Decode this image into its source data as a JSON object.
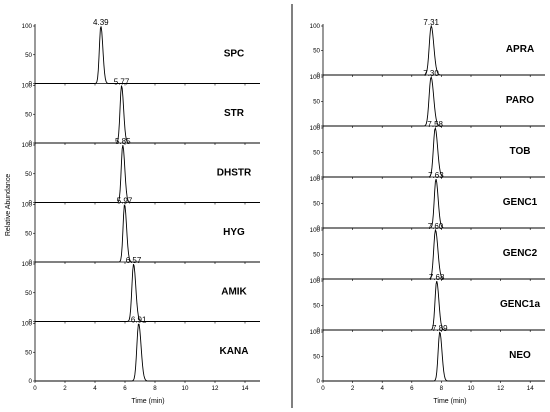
{
  "chart_data": [
    {
      "type": "line",
      "panel": "left",
      "xlabel": "Time (min)",
      "ylabel": "Relative Abundance",
      "xlim": [
        0,
        15
      ],
      "ylim": [
        0,
        100
      ],
      "x_ticks": [
        "0",
        "2",
        "4",
        "6",
        "8",
        "10",
        "12",
        "14"
      ],
      "y_ticks": [
        "0",
        "50",
        "100"
      ],
      "series": [
        {
          "name": "SPC",
          "peak_time": 4.39,
          "peak_label": "4.39",
          "peak_width": 0.1
        },
        {
          "name": "STR",
          "peak_time": 5.77,
          "peak_label": "5.77",
          "peak_width": 0.1
        },
        {
          "name": "DHSTR",
          "peak_time": 5.85,
          "peak_label": "5.85",
          "peak_width": 0.1
        },
        {
          "name": "HYG",
          "peak_time": 5.97,
          "peak_label": "5.97",
          "peak_width": 0.1
        },
        {
          "name": "AMIK",
          "peak_time": 6.57,
          "peak_label": "6.57",
          "peak_width": 0.11
        },
        {
          "name": "KANA",
          "peak_time": 6.91,
          "peak_label": "6.91",
          "peak_width": 0.12
        }
      ]
    },
    {
      "type": "line",
      "panel": "right",
      "xlabel": "Time (min)",
      "ylabel": "",
      "xlim": [
        0,
        15
      ],
      "ylim": [
        0,
        100
      ],
      "x_ticks": [
        "0",
        "2",
        "4",
        "6",
        "8",
        "10",
        "12",
        "14"
      ],
      "y_ticks": [
        "0",
        "50",
        "100"
      ],
      "series": [
        {
          "name": "APRA",
          "peak_time": 7.31,
          "peak_label": "7.31",
          "peak_width": 0.13
        },
        {
          "name": "PARO",
          "peak_time": 7.3,
          "peak_label": "7.30",
          "peak_width": 0.13
        },
        {
          "name": "TOB",
          "peak_time": 7.58,
          "peak_label": "7.58",
          "peak_width": 0.12
        },
        {
          "name": "GENC1",
          "peak_time": 7.63,
          "peak_label": "7.63",
          "peak_width": 0.11
        },
        {
          "name": "GENC2",
          "peak_time": 7.6,
          "peak_label": "7.60",
          "peak_width": 0.12
        },
        {
          "name": "GENC1a",
          "peak_time": 7.68,
          "peak_label": "7.68",
          "peak_width": 0.11
        },
        {
          "name": "NEO",
          "peak_time": 7.89,
          "peak_label": "7.89",
          "peak_width": 0.11
        }
      ]
    }
  ]
}
